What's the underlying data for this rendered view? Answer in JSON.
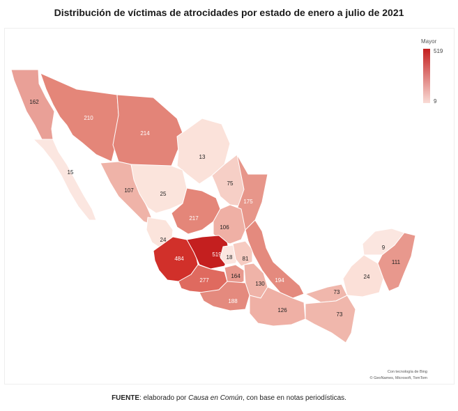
{
  "title": "Distribución de víctimas de atrocidades por estado de enero a julio de 2021",
  "legend": {
    "title": "Mayor",
    "max": "519",
    "min": "9",
    "color_high": "#c41f1f",
    "color_low": "#f9dcd6"
  },
  "map_credits": {
    "line1": "Con tecnología de Bing",
    "line2": "© GeoNames, Microsoft, TomTom"
  },
  "source": {
    "label": "FUENTE",
    "text_before": ": elaborado por ",
    "org": "Causa en Común",
    "text_after": ", con base en notas periodísticas."
  },
  "states": [
    {
      "id": "baja-california",
      "value": "162"
    },
    {
      "id": "sonora",
      "value": "210"
    },
    {
      "id": "chihuahua",
      "value": "214"
    },
    {
      "id": "coahuila",
      "value": "13"
    },
    {
      "id": "baja-california-sur",
      "value": "15"
    },
    {
      "id": "sinaloa",
      "value": "107"
    },
    {
      "id": "durango",
      "value": "25"
    },
    {
      "id": "nuevo-leon",
      "value": "75"
    },
    {
      "id": "tamaulipas",
      "value": "175"
    },
    {
      "id": "zacatecas",
      "value": "217"
    },
    {
      "id": "san-luis-potosi",
      "value": "106"
    },
    {
      "id": "nayarit",
      "value": "24"
    },
    {
      "id": "jalisco",
      "value": "484"
    },
    {
      "id": "guanajuato",
      "value": "519"
    },
    {
      "id": "queretaro",
      "value": "18"
    },
    {
      "id": "hidalgo",
      "value": "81"
    },
    {
      "id": "michoacan",
      "value": "277"
    },
    {
      "id": "estado-de-mexico",
      "value": "164"
    },
    {
      "id": "puebla",
      "value": "130"
    },
    {
      "id": "veracruz",
      "value": "194"
    },
    {
      "id": "guerrero",
      "value": "188"
    },
    {
      "id": "oaxaca",
      "value": "126"
    },
    {
      "id": "tabasco",
      "value": "73"
    },
    {
      "id": "chiapas",
      "value": "73"
    },
    {
      "id": "yucatan",
      "value": "9"
    },
    {
      "id": "campeche",
      "value": "24"
    },
    {
      "id": "quintana-roo",
      "value": "111"
    }
  ]
}
